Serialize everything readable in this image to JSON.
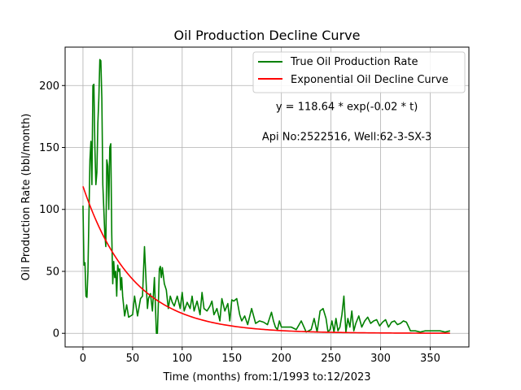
{
  "chart_data": {
    "type": "line",
    "title": "Oil Production Decline Curve",
    "xlabel": "Time (months) from:1/1993 to:12/2023",
    "ylabel": "Oil Production Rate (bbl/month)",
    "xlim": [
      -18,
      389
    ],
    "ylim": [
      -11,
      231
    ],
    "xticks": [
      0,
      50,
      100,
      150,
      200,
      250,
      300,
      350
    ],
    "yticks": [
      0,
      50,
      100,
      150,
      200
    ],
    "grid": true,
    "legend_position": "top-right",
    "annotations": [
      {
        "text": "y = 118.64 * exp(-0.02 * t)",
        "x": 266,
        "y": 183
      },
      {
        "text": "Api No:2522516, Well:62-3-SX-3",
        "x": 266,
        "y": 159
      }
    ],
    "series": [
      {
        "name": "True Oil Production Rate",
        "color": "#008000",
        "x": [
          0,
          1,
          2,
          3,
          4,
          5,
          6,
          7,
          8,
          9,
          10,
          11,
          12,
          13,
          14,
          15,
          16,
          17,
          18,
          19,
          20,
          21,
          22,
          23,
          24,
          25,
          26,
          27,
          28,
          29,
          30,
          31,
          32,
          33,
          34,
          35,
          36,
          37,
          38,
          39,
          40,
          42,
          44,
          46,
          48,
          50,
          52,
          55,
          58,
          60,
          62,
          64,
          65,
          66,
          68,
          70,
          72,
          74,
          75,
          76,
          77,
          78,
          79,
          80,
          82,
          84,
          86,
          88,
          90,
          92,
          95,
          98,
          100,
          102,
          105,
          108,
          110,
          112,
          115,
          118,
          120,
          122,
          125,
          128,
          130,
          132,
          135,
          138,
          140,
          143,
          146,
          148,
          150,
          152,
          155,
          158,
          160,
          163,
          166,
          170,
          174,
          178,
          182,
          186,
          190,
          192,
          194,
          196,
          198,
          200,
          205,
          210,
          215,
          220,
          225,
          230,
          233,
          236,
          239,
          242,
          245,
          247,
          249,
          251,
          253,
          255,
          257,
          259,
          261,
          263,
          265,
          267,
          269,
          271,
          273,
          275,
          278,
          281,
          284,
          287,
          290,
          293,
          296,
          299,
          302,
          305,
          308,
          311,
          314,
          317,
          320,
          323,
          326,
          329,
          330,
          335,
          340,
          345,
          350,
          355,
          360,
          365,
          370
        ],
        "y": [
          103,
          55,
          57,
          30,
          29,
          50,
          95,
          140,
          155,
          120,
          200,
          201,
          150,
          120,
          130,
          170,
          190,
          221,
          220,
          190,
          120,
          100,
          80,
          70,
          140,
          135,
          100,
          150,
          153,
          80,
          40,
          58,
          45,
          50,
          30,
          55,
          50,
          52,
          35,
          45,
          30,
          14,
          23,
          13,
          14,
          15,
          30,
          14,
          28,
          30,
          70,
          35,
          20,
          28,
          32,
          18,
          45,
          0,
          0,
          25,
          52,
          54,
          45,
          53,
          40,
          35,
          20,
          30,
          25,
          22,
          30,
          20,
          33,
          18,
          25,
          20,
          30,
          18,
          26,
          15,
          33,
          20,
          18,
          22,
          26,
          15,
          20,
          10,
          28,
          18,
          24,
          10,
          27,
          26,
          28,
          15,
          10,
          14,
          7,
          20,
          8,
          10,
          9,
          7,
          17,
          10,
          5,
          3,
          10,
          5,
          5,
          5,
          3,
          10,
          1,
          3,
          12,
          1,
          18,
          20,
          12,
          1,
          3,
          10,
          1,
          12,
          2,
          5,
          15,
          30,
          1,
          12,
          5,
          18,
          2,
          8,
          14,
          5,
          10,
          13,
          8,
          10,
          11,
          6,
          9,
          11,
          5,
          9,
          10,
          7,
          8,
          10,
          9,
          4,
          2,
          2,
          1,
          2,
          2,
          2,
          2,
          1,
          2
        ]
      },
      {
        "name": "Exponential Oil Decline Curve",
        "color": "#ff0000",
        "a": 118.64,
        "b": -0.02,
        "x_range": [
          0,
          370
        ]
      }
    ]
  }
}
